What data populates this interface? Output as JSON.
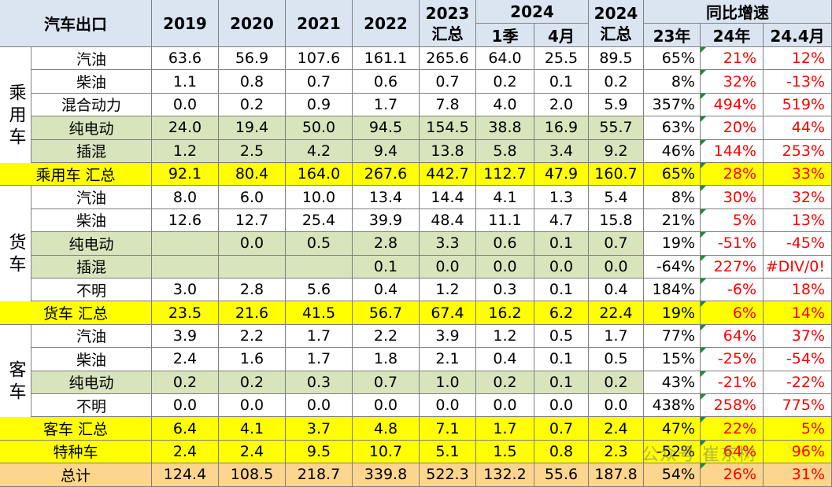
{
  "chart_data": {
    "type": "table",
    "title": "汽车出口",
    "header": {
      "corner": "汽车出口",
      "years": [
        "2019",
        "2020",
        "2021",
        "2022"
      ],
      "col2023": [
        "2023",
        "汇总"
      ],
      "col2024_group": "2024",
      "col2024_sub": [
        "1季",
        "4月"
      ],
      "col2024_total": [
        "2024",
        "汇总"
      ],
      "yoy_group": "同比增速",
      "yoy_sub": [
        "23年",
        "24年",
        "24.4月"
      ]
    },
    "categories": [
      "乘用车",
      "货车",
      "客车"
    ],
    "rows": [
      {
        "label": "汽油",
        "vals": [
          "63.6",
          "56.9",
          "107.6",
          "161.1",
          "265.6",
          "64.0",
          "25.5",
          "89.5",
          "65%",
          "21%",
          "12%"
        ],
        "style": "normal"
      },
      {
        "label": "柴油",
        "vals": [
          "1.1",
          "0.8",
          "0.7",
          "0.6",
          "0.7",
          "0.2",
          "0.1",
          "0.2",
          "8%",
          "32%",
          "-13%"
        ],
        "style": "normal"
      },
      {
        "label": "混合动力",
        "vals": [
          "0.0",
          "0.2",
          "0.9",
          "1.7",
          "7.8",
          "4.0",
          "2.0",
          "5.9",
          "357%",
          "494%",
          "519%"
        ],
        "style": "normal"
      },
      {
        "label": "纯电动",
        "vals": [
          "24.0",
          "19.4",
          "50.0",
          "94.5",
          "154.5",
          "38.8",
          "16.9",
          "55.7",
          "63%",
          "20%",
          "44%"
        ],
        "style": "green"
      },
      {
        "label": "插混",
        "vals": [
          "1.2",
          "2.5",
          "4.2",
          "9.4",
          "13.8",
          "5.8",
          "3.4",
          "9.2",
          "46%",
          "144%",
          "253%"
        ],
        "style": "green"
      },
      {
        "label": "乘用车 汇总",
        "vals": [
          "92.1",
          "80.4",
          "164.0",
          "267.6",
          "442.7",
          "112.7",
          "47.9",
          "160.7",
          "65%",
          "28%",
          "33%"
        ],
        "style": "yellow"
      },
      {
        "label": "汽油",
        "vals": [
          "8.0",
          "6.0",
          "10.0",
          "13.4",
          "14.4",
          "4.1",
          "1.3",
          "5.4",
          "8%",
          "30%",
          "32%"
        ],
        "style": "normal"
      },
      {
        "label": "柴油",
        "vals": [
          "12.6",
          "12.7",
          "25.4",
          "39.9",
          "48.4",
          "11.1",
          "4.7",
          "15.8",
          "21%",
          "5%",
          "13%"
        ],
        "style": "normal"
      },
      {
        "label": "纯电动",
        "vals": [
          "",
          "0.0",
          "0.5",
          "2.8",
          "3.3",
          "0.6",
          "0.1",
          "0.7",
          "19%",
          "-51%",
          "-45%"
        ],
        "style": "green"
      },
      {
        "label": "插混",
        "vals": [
          "",
          "",
          "",
          "0.1",
          "0.0",
          "0.0",
          "0.0",
          "0.0",
          "-64%",
          "227%",
          "#DIV/0!"
        ],
        "style": "green"
      },
      {
        "label": "不明",
        "vals": [
          "3.0",
          "2.8",
          "5.6",
          "0.4",
          "1.2",
          "0.3",
          "0.1",
          "0.4",
          "184%",
          "-6%",
          "18%"
        ],
        "style": "normal"
      },
      {
        "label": "货车 汇总",
        "vals": [
          "23.5",
          "21.6",
          "41.5",
          "56.7",
          "67.4",
          "16.2",
          "6.2",
          "22.4",
          "19%",
          "6%",
          "14%"
        ],
        "style": "yellow"
      },
      {
        "label": "汽油",
        "vals": [
          "3.9",
          "2.2",
          "1.7",
          "2.2",
          "3.9",
          "1.2",
          "0.5",
          "1.7",
          "77%",
          "64%",
          "37%"
        ],
        "style": "normal"
      },
      {
        "label": "柴油",
        "vals": [
          "2.4",
          "1.6",
          "1.7",
          "1.8",
          "2.1",
          "0.4",
          "0.1",
          "0.5",
          "15%",
          "-25%",
          "-54%"
        ],
        "style": "normal"
      },
      {
        "label": "纯电动",
        "vals": [
          "0.2",
          "0.2",
          "0.3",
          "0.7",
          "1.0",
          "0.2",
          "0.1",
          "0.2",
          "43%",
          "-21%",
          "-22%"
        ],
        "style": "green"
      },
      {
        "label": "不明",
        "vals": [
          "0.0",
          "0.0",
          "0.0",
          "0.0",
          "0.0",
          "0.0",
          "0.0",
          "0.0",
          "438%",
          "258%",
          "775%"
        ],
        "style": "normal"
      },
      {
        "label": "客车 汇总",
        "vals": [
          "6.4",
          "4.1",
          "3.7",
          "4.8",
          "7.1",
          "1.7",
          "0.7",
          "2.4",
          "47%",
          "22%",
          "5%"
        ],
        "style": "yellow"
      },
      {
        "label": "特种车",
        "vals": [
          "2.4",
          "2.4",
          "9.5",
          "10.7",
          "5.1",
          "1.5",
          "0.8",
          "2.3",
          "-52%",
          "64%",
          "96%"
        ],
        "style": "yellow"
      },
      {
        "label": "总计",
        "vals": [
          "124.4",
          "108.5",
          "218.7",
          "339.8",
          "522.3",
          "132.2",
          "55.6",
          "187.8",
          "54%",
          "26%",
          "31%"
        ],
        "style": "orange"
      }
    ],
    "colors": {
      "header_bg": "#dbe5f1",
      "green_bg": "#d8e4bc",
      "yellow_bg": "#ffff00",
      "orange_bg": "#fcd58f",
      "red_text": "#ff0000",
      "grid": "#7f7f7f"
    },
    "watermark": "公众号 崔东树"
  }
}
